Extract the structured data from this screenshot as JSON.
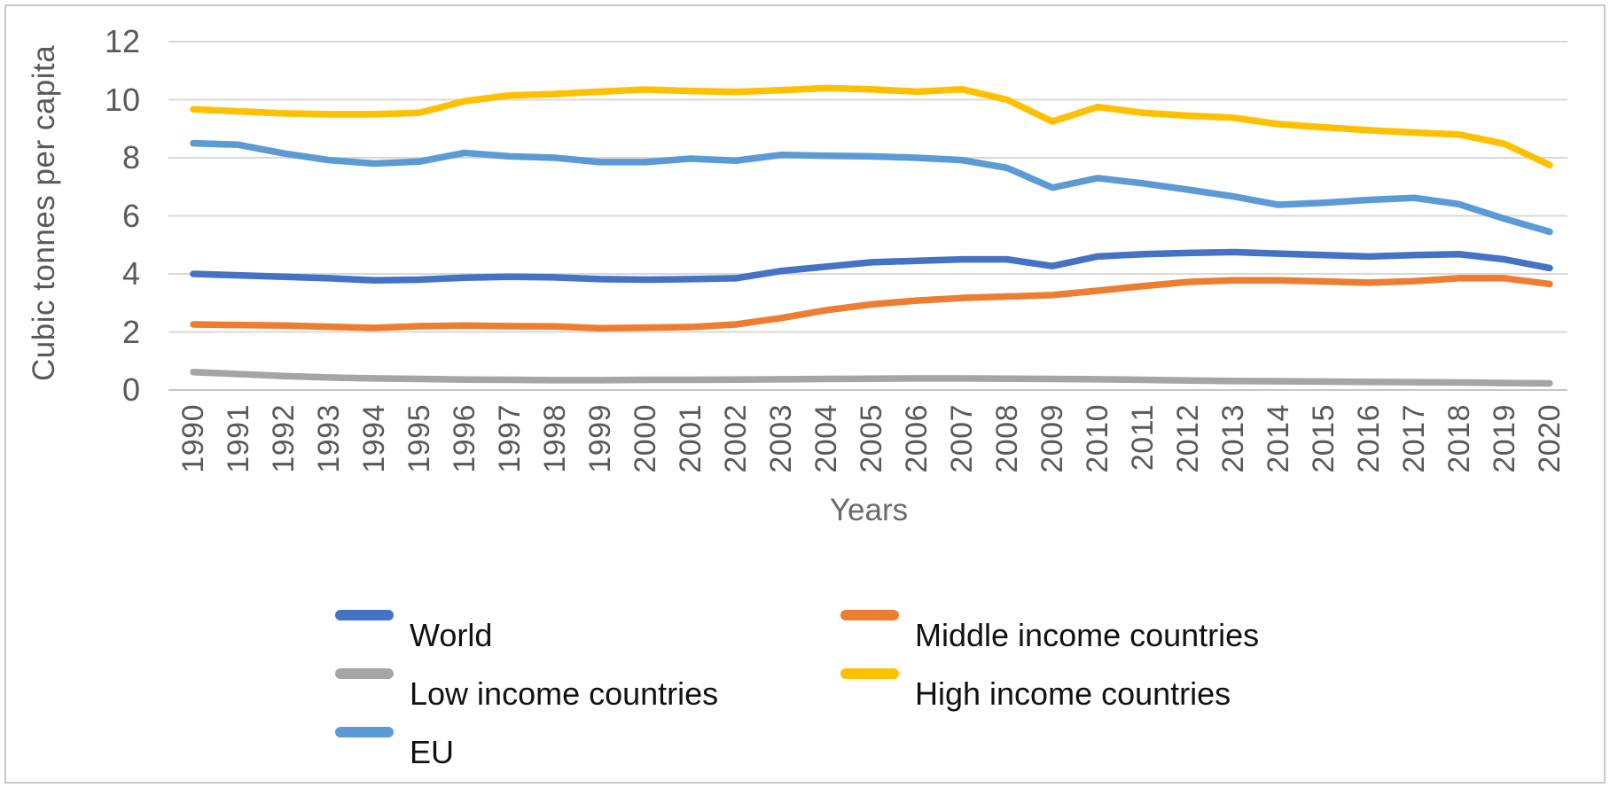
{
  "chart_data": {
    "type": "line",
    "title": "",
    "xlabel": "Years",
    "ylabel": "Cubic tonnes per capita",
    "x": [
      1990,
      1991,
      1992,
      1993,
      1994,
      1995,
      1996,
      1997,
      1998,
      1999,
      2000,
      2001,
      2002,
      2003,
      2004,
      2005,
      2006,
      2007,
      2008,
      2009,
      2010,
      2011,
      2012,
      2013,
      2014,
      2015,
      2016,
      2017,
      2018,
      2019,
      2020
    ],
    "ylim": [
      0,
      12
    ],
    "y_ticks": [
      0,
      2,
      4,
      6,
      8,
      10,
      12
    ],
    "grid": true,
    "legend_position": "bottom-two-columns",
    "series": [
      {
        "name": "World",
        "color": "#4472C4",
        "values": [
          4.0,
          3.95,
          3.9,
          3.85,
          3.78,
          3.8,
          3.87,
          3.9,
          3.88,
          3.82,
          3.8,
          3.82,
          3.85,
          4.1,
          4.25,
          4.4,
          4.45,
          4.5,
          4.5,
          4.27,
          4.6,
          4.68,
          4.72,
          4.75,
          4.7,
          4.65,
          4.6,
          4.65,
          4.68,
          4.5,
          4.2
        ]
      },
      {
        "name": "Middle income countries",
        "color": "#ED7D31",
        "values": [
          2.26,
          2.24,
          2.22,
          2.18,
          2.14,
          2.2,
          2.22,
          2.2,
          2.19,
          2.13,
          2.15,
          2.17,
          2.26,
          2.48,
          2.75,
          2.95,
          3.08,
          3.17,
          3.22,
          3.27,
          3.42,
          3.58,
          3.72,
          3.78,
          3.78,
          3.74,
          3.7,
          3.75,
          3.85,
          3.85,
          3.65
        ]
      },
      {
        "name": "Low income countries",
        "color": "#A5A5A5",
        "values": [
          0.62,
          0.55,
          0.48,
          0.43,
          0.4,
          0.38,
          0.36,
          0.35,
          0.34,
          0.34,
          0.35,
          0.35,
          0.36,
          0.37,
          0.38,
          0.39,
          0.4,
          0.4,
          0.39,
          0.38,
          0.37,
          0.35,
          0.33,
          0.31,
          0.3,
          0.29,
          0.28,
          0.27,
          0.26,
          0.24,
          0.23
        ]
      },
      {
        "name": "High income countries",
        "color": "#FFC000",
        "values": [
          9.67,
          9.6,
          9.53,
          9.5,
          9.5,
          9.55,
          9.95,
          10.15,
          10.2,
          10.28,
          10.35,
          10.3,
          10.27,
          10.33,
          10.4,
          10.36,
          10.28,
          10.36,
          10.0,
          9.25,
          9.75,
          9.55,
          9.45,
          9.38,
          9.16,
          9.05,
          8.95,
          8.87,
          8.8,
          8.48,
          7.75
        ]
      },
      {
        "name": "EU",
        "color": "#5B9BD5",
        "values": [
          8.5,
          8.45,
          8.15,
          7.92,
          7.8,
          7.87,
          8.17,
          8.05,
          8.0,
          7.85,
          7.85,
          7.97,
          7.9,
          8.1,
          8.07,
          8.05,
          8.0,
          7.92,
          7.65,
          6.97,
          7.3,
          7.12,
          6.9,
          6.67,
          6.38,
          6.45,
          6.55,
          6.62,
          6.4,
          5.9,
          5.45
        ]
      }
    ],
    "legend_columns": [
      [
        "World",
        "Low income countries",
        "EU"
      ],
      [
        "Middle income countries",
        "High income countries"
      ]
    ]
  },
  "figure": {
    "colors": {
      "gridline": "#D9D9D9",
      "axis_zero_line": "#C6C6C6",
      "axis_text": "#595959",
      "legend_text": "#111111",
      "border": "#C9C9C9",
      "background": "#FFFFFF"
    }
  }
}
